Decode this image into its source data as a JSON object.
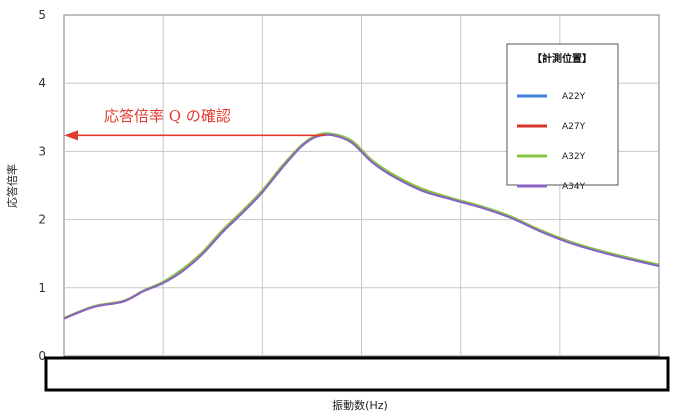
{
  "chart_data": {
    "type": "line",
    "xlabel": "振動数(Hz)",
    "ylabel": "応答倍率",
    "ylim": [
      0,
      5
    ],
    "yticks": [
      "0",
      "1",
      "2",
      "3",
      "4",
      "5"
    ],
    "grid": true,
    "legend": {
      "title": "【計測位置】",
      "placement": "top-right"
    },
    "annotation": {
      "text": "応答倍率 Q の確認",
      "y": 3.25
    },
    "x": [
      0,
      0.3,
      0.6,
      0.8,
      1.0,
      1.2,
      1.4,
      1.6,
      1.8,
      2.0,
      2.2,
      2.4,
      2.55,
      2.7,
      2.9,
      3.1,
      3.3,
      3.6,
      3.9,
      4.2,
      4.5,
      4.8,
      5.1,
      5.4,
      5.7,
      6.0
    ],
    "series": [
      {
        "name": "A22Y",
        "color": "#3f7fd9",
        "values": [
          0.55,
          0.72,
          0.8,
          0.95,
          1.07,
          1.25,
          1.5,
          1.82,
          2.1,
          2.4,
          2.76,
          3.08,
          3.22,
          3.24,
          3.13,
          2.85,
          2.65,
          2.43,
          2.3,
          2.18,
          2.03,
          1.83,
          1.66,
          1.53,
          1.42,
          1.32
        ]
      },
      {
        "name": "A27Y",
        "color": "#d9342b",
        "values": [
          0.55,
          0.72,
          0.8,
          0.95,
          1.08,
          1.26,
          1.51,
          1.83,
          2.11,
          2.41,
          2.77,
          3.09,
          3.23,
          3.25,
          3.14,
          2.86,
          2.66,
          2.44,
          2.31,
          2.19,
          2.04,
          1.84,
          1.67,
          1.54,
          1.43,
          1.33
        ]
      },
      {
        "name": "A32Y",
        "color": "#86c43f",
        "values": [
          0.56,
          0.73,
          0.81,
          0.96,
          1.09,
          1.28,
          1.53,
          1.85,
          2.13,
          2.43,
          2.79,
          3.1,
          3.24,
          3.26,
          3.16,
          2.88,
          2.68,
          2.46,
          2.32,
          2.2,
          2.05,
          1.85,
          1.68,
          1.55,
          1.44,
          1.34
        ]
      },
      {
        "name": "A34Y",
        "color": "#8a63c4",
        "values": [
          0.55,
          0.72,
          0.8,
          0.95,
          1.07,
          1.25,
          1.5,
          1.82,
          2.1,
          2.4,
          2.76,
          3.08,
          3.22,
          3.24,
          3.13,
          2.85,
          2.65,
          2.43,
          2.3,
          2.18,
          2.03,
          1.83,
          1.66,
          1.53,
          1.42,
          1.32
        ]
      }
    ]
  }
}
